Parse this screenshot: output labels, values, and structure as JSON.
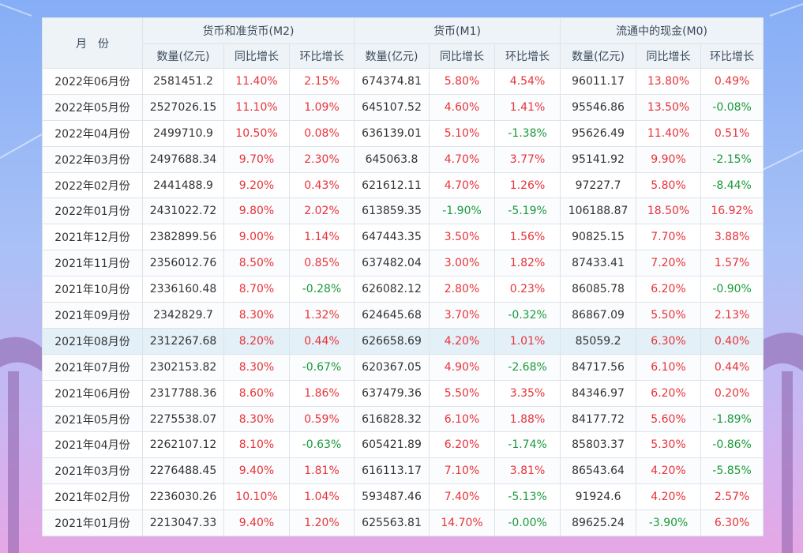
{
  "table": {
    "header": {
      "month": "月　份",
      "groups": [
        "货币和准货币(M2)",
        "货币(M1)",
        "流通中的现金(M0)"
      ],
      "subheaders": [
        [
          "数量(亿元)",
          "同比增长",
          "环比增长"
        ],
        [
          "数量(亿元)",
          "同比增长",
          "环比增长"
        ],
        [
          "数量(亿元)",
          "同比增长",
          "环比增长"
        ]
      ]
    },
    "rows": [
      [
        "2022年06月份",
        "2581451.2",
        "11.40%",
        "2.15%",
        "674374.81",
        "5.80%",
        "4.54%",
        "96011.17",
        "13.80%",
        "0.49%"
      ],
      [
        "2022年05月份",
        "2527026.15",
        "11.10%",
        "1.09%",
        "645107.52",
        "4.60%",
        "1.41%",
        "95546.86",
        "13.50%",
        "-0.08%"
      ],
      [
        "2022年04月份",
        "2499710.9",
        "10.50%",
        "0.08%",
        "636139.01",
        "5.10%",
        "-1.38%",
        "95626.49",
        "11.40%",
        "0.51%"
      ],
      [
        "2022年03月份",
        "2497688.34",
        "9.70%",
        "2.30%",
        "645063.8",
        "4.70%",
        "3.77%",
        "95141.92",
        "9.90%",
        "-2.15%"
      ],
      [
        "2022年02月份",
        "2441488.9",
        "9.20%",
        "0.43%",
        "621612.11",
        "4.70%",
        "1.26%",
        "97227.7",
        "5.80%",
        "-8.44%"
      ],
      [
        "2022年01月份",
        "2431022.72",
        "9.80%",
        "2.02%",
        "613859.35",
        "-1.90%",
        "-5.19%",
        "106188.87",
        "18.50%",
        "16.92%"
      ],
      [
        "2021年12月份",
        "2382899.56",
        "9.00%",
        "1.14%",
        "647443.35",
        "3.50%",
        "1.56%",
        "90825.15",
        "7.70%",
        "3.88%"
      ],
      [
        "2021年11月份",
        "2356012.76",
        "8.50%",
        "0.85%",
        "637482.04",
        "3.00%",
        "1.82%",
        "87433.41",
        "7.20%",
        "1.57%"
      ],
      [
        "2021年10月份",
        "2336160.48",
        "8.70%",
        "-0.28%",
        "626082.12",
        "2.80%",
        "0.23%",
        "86085.78",
        "6.20%",
        "-0.90%"
      ],
      [
        "2021年09月份",
        "2342829.7",
        "8.30%",
        "1.32%",
        "624645.68",
        "3.70%",
        "-0.32%",
        "86867.09",
        "5.50%",
        "2.13%"
      ],
      [
        "2021年08月份",
        "2312267.68",
        "8.20%",
        "0.44%",
        "626658.69",
        "4.20%",
        "1.01%",
        "85059.2",
        "6.30%",
        "0.40%"
      ],
      [
        "2021年07月份",
        "2302153.82",
        "8.30%",
        "-0.67%",
        "620367.05",
        "4.90%",
        "-2.68%",
        "84717.56",
        "6.10%",
        "0.44%"
      ],
      [
        "2021年06月份",
        "2317788.36",
        "8.60%",
        "1.86%",
        "637479.36",
        "5.50%",
        "3.35%",
        "84346.97",
        "6.20%",
        "0.20%"
      ],
      [
        "2021年05月份",
        "2275538.07",
        "8.30%",
        "0.59%",
        "616828.32",
        "6.10%",
        "1.88%",
        "84177.72",
        "5.60%",
        "-1.89%"
      ],
      [
        "2021年04月份",
        "2262107.12",
        "8.10%",
        "-0.63%",
        "605421.89",
        "6.20%",
        "-1.74%",
        "85803.37",
        "5.30%",
        "-0.86%"
      ],
      [
        "2021年03月份",
        "2276488.45",
        "9.40%",
        "1.81%",
        "616113.17",
        "7.10%",
        "3.81%",
        "86543.64",
        "4.20%",
        "-5.85%"
      ],
      [
        "2021年02月份",
        "2236030.26",
        "10.10%",
        "1.04%",
        "593487.46",
        "7.40%",
        "-5.13%",
        "91924.6",
        "4.20%",
        "2.57%"
      ],
      [
        "2021年01月份",
        "2213047.33",
        "9.40%",
        "1.20%",
        "625563.81",
        "14.70%",
        "-0.00%",
        "89625.24",
        "-3.90%",
        "6.30%"
      ]
    ]
  }
}
